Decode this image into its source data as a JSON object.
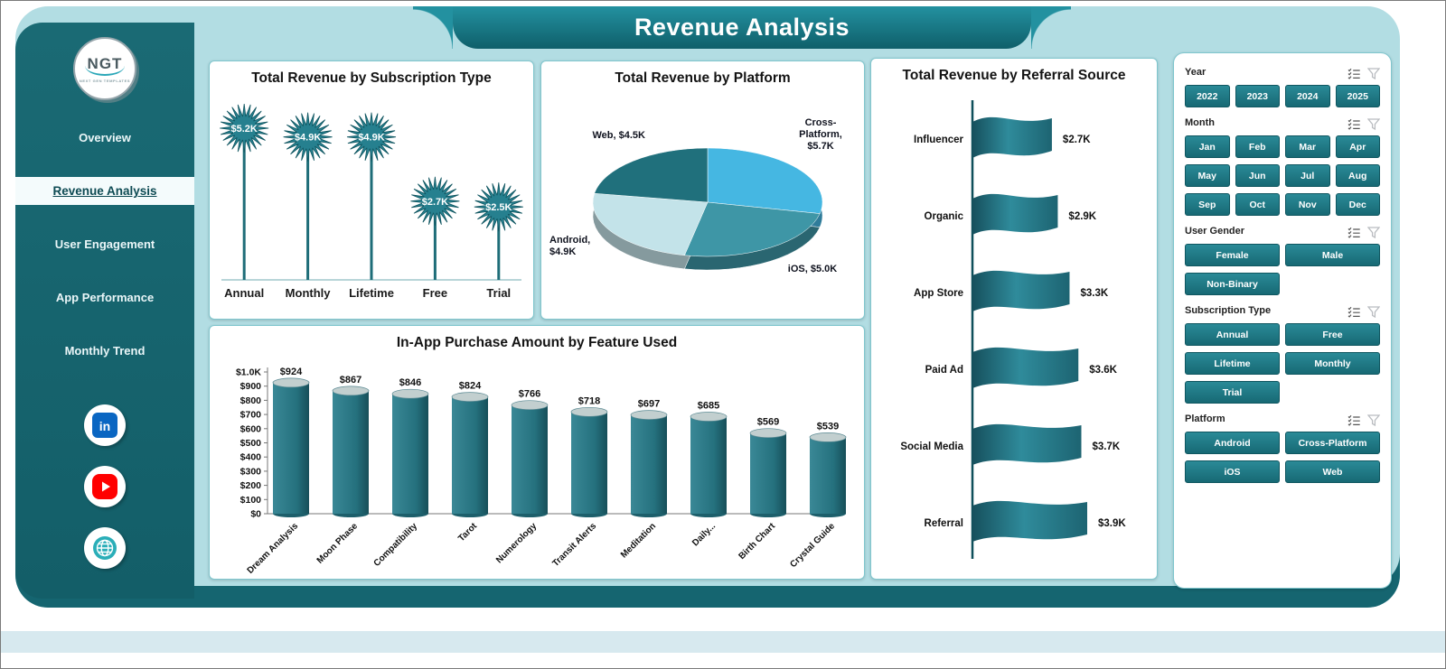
{
  "title": "Revenue Analysis",
  "sidebar": {
    "logo": {
      "text": "NGT",
      "subtext": "Next Gen Templates"
    },
    "items": [
      {
        "label": "Overview",
        "active": false
      },
      {
        "label": "Revenue Analysis",
        "active": true
      },
      {
        "label": "User Engagement",
        "active": false
      },
      {
        "label": "App Performance",
        "active": false
      },
      {
        "label": "Monthly Trend",
        "active": false
      }
    ],
    "social_icons": [
      "linkedin",
      "youtube",
      "website"
    ]
  },
  "chart_data": [
    {
      "type": "lollipop-star",
      "title": "Total Revenue by Subscription Type",
      "categories": [
        "Annual",
        "Monthly",
        "Lifetime",
        "Free",
        "Trial"
      ],
      "values": [
        5200,
        4900,
        4900,
        2700,
        2500
      ],
      "labels": [
        "$5.2K",
        "$4.9K",
        "$4.9K",
        "$2.7K",
        "$2.5K"
      ]
    },
    {
      "type": "pie",
      "title": "Total Revenue by Platform",
      "slices": [
        {
          "name": "Cross-Platform",
          "value": 5700,
          "color": "#45b7e2",
          "label_lines": [
            "Cross-",
            "Platform,",
            "$5.7K"
          ]
        },
        {
          "name": "iOS",
          "value": 5000,
          "color": "#3e96a6",
          "label_lines": [
            "iOS, $5.0K"
          ]
        },
        {
          "name": "Android",
          "value": 4900,
          "color": "#c3e3e9",
          "label_lines": [
            "Android,",
            "$4.9K"
          ]
        },
        {
          "name": "Web",
          "value": 4500,
          "color": "#20707c",
          "label_lines": [
            "Web, $4.5K"
          ]
        }
      ]
    },
    {
      "type": "flag",
      "title": "Total Revenue by Referral Source",
      "categories": [
        "Influencer",
        "Organic",
        "App Store",
        "Paid Ad",
        "Social Media",
        "Referral"
      ],
      "values": [
        2700,
        2900,
        3300,
        3600,
        3700,
        3900
      ],
      "labels": [
        "$2.7K",
        "$2.9K",
        "$3.3K",
        "$3.6K",
        "$3.7K",
        "$3.9K"
      ]
    },
    {
      "type": "bar",
      "title": "In-App Purchase Amount by Feature Used",
      "categories": [
        "Dream Analysis",
        "Moon Phase",
        "Compatibility",
        "Tarot",
        "Numerology",
        "Transit Alerts",
        "Meditation",
        "Daily...",
        "Birth Chart",
        "Crystal Guide"
      ],
      "values": [
        924,
        867,
        846,
        824,
        766,
        718,
        697,
        685,
        569,
        539
      ],
      "labels": [
        "$924",
        "$867",
        "$846",
        "$824",
        "$766",
        "$718",
        "$697",
        "$685",
        "$569",
        "$539"
      ],
      "ylim": [
        0,
        1000
      ],
      "yticks": [
        {
          "value": 0,
          "label": "$0"
        },
        {
          "value": 100,
          "label": "$100"
        },
        {
          "value": 200,
          "label": "$200"
        },
        {
          "value": 300,
          "label": "$300"
        },
        {
          "value": 400,
          "label": "$400"
        },
        {
          "value": 500,
          "label": "$500"
        },
        {
          "value": 600,
          "label": "$600"
        },
        {
          "value": 700,
          "label": "$700"
        },
        {
          "value": 800,
          "label": "$800"
        },
        {
          "value": 900,
          "label": "$900"
        },
        {
          "value": 1000,
          "label": "$1.0K"
        }
      ]
    }
  ],
  "slicers": [
    {
      "title": "Year",
      "columns": 4,
      "options": [
        "2022",
        "2023",
        "2024",
        "2025"
      ]
    },
    {
      "title": "Month",
      "columns": 4,
      "options": [
        "Jan",
        "Feb",
        "Mar",
        "Apr",
        "May",
        "Jun",
        "Jul",
        "Aug",
        "Sep",
        "Oct",
        "Nov",
        "Dec"
      ]
    },
    {
      "title": "User Gender",
      "columns": 2,
      "options": [
        "Female",
        "Male",
        "Non-Binary"
      ]
    },
    {
      "title": "Subscription Type",
      "columns": 2,
      "options": [
        "Annual",
        "Free",
        "Lifetime",
        "Monthly",
        "Trial"
      ]
    },
    {
      "title": "Platform",
      "columns": 2,
      "options": [
        "Android",
        "Cross-Platform",
        "iOS",
        "Web"
      ]
    }
  ],
  "colors": {
    "accent": "#1f7e8a",
    "sidebar": "#17656f",
    "background": "#b2dde3",
    "chart_teal": "#26808f",
    "pie_web": "#20707c",
    "pie_cross": "#45b7e2",
    "pie_ios": "#3e96a6",
    "pie_android": "#c3e3e9"
  }
}
